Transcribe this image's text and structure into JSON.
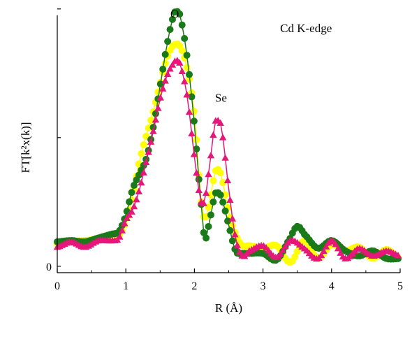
{
  "chart_data": {
    "type": "scatter",
    "xlabel": "R (Å)",
    "ylabel": "FT[k²x(k)]",
    "xlim": [
      0,
      5
    ],
    "ylim": [
      -0.05,
      1.95
    ],
    "x_ticks": [
      0,
      1,
      2,
      3,
      4,
      5
    ],
    "x_tick_labels": [
      "0",
      "1",
      "2",
      "3",
      "4",
      "5"
    ],
    "y_tick_labels": [
      "0",
      "",
      ""
    ],
    "y_ticks": [
      0,
      1.0,
      2.0
    ],
    "grid": false,
    "annotations": [
      {
        "text": "O",
        "x": 1.65,
        "y": 1.93
      },
      {
        "text": "Se",
        "x": 2.3,
        "y": 1.28
      },
      {
        "text": "Cd K-edge",
        "x": 3.25,
        "y": 1.82
      }
    ],
    "series": [
      {
        "marker": "circle",
        "color": "#ffff00",
        "x": [
          0.0,
          0.2,
          0.4,
          0.6,
          0.8,
          0.9,
          1.0,
          1.1,
          1.2,
          1.3,
          1.4,
          1.5,
          1.6,
          1.7,
          1.8,
          1.9,
          2.0,
          2.1,
          2.15,
          2.2,
          2.3,
          2.35,
          2.4,
          2.5,
          2.6,
          2.7,
          2.8,
          3.0,
          3.2,
          3.4,
          3.6,
          3.8,
          4.0,
          4.2,
          4.4,
          4.6,
          4.8,
          5.0
        ],
        "y": [
          0.17,
          0.19,
          0.2,
          0.21,
          0.22,
          0.24,
          0.35,
          0.55,
          0.82,
          1.02,
          1.2,
          1.42,
          1.62,
          1.72,
          1.7,
          1.52,
          1.18,
          0.5,
          0.38,
          0.45,
          0.72,
          0.75,
          0.68,
          0.42,
          0.25,
          0.16,
          0.16,
          0.14,
          0.16,
          0.03,
          0.2,
          0.06,
          0.17,
          0.12,
          0.15,
          0.06,
          0.13,
          0.06
        ]
      },
      {
        "marker": "circle",
        "color": "#1a7a1a",
        "x": [
          0.0,
          0.2,
          0.4,
          0.6,
          0.8,
          0.9,
          1.0,
          1.1,
          1.2,
          1.3,
          1.4,
          1.5,
          1.6,
          1.7,
          1.75,
          1.8,
          1.9,
          2.0,
          2.1,
          2.15,
          2.2,
          2.3,
          2.35,
          2.4,
          2.5,
          2.6,
          2.7,
          2.8,
          3.0,
          3.2,
          3.4,
          3.5,
          3.6,
          3.8,
          4.0,
          4.2,
          4.4,
          4.6,
          4.8,
          5.0
        ],
        "y": [
          0.19,
          0.2,
          0.19,
          0.22,
          0.25,
          0.27,
          0.4,
          0.6,
          0.72,
          0.84,
          1.08,
          1.4,
          1.72,
          1.95,
          1.98,
          1.92,
          1.6,
          1.1,
          0.48,
          0.22,
          0.3,
          0.55,
          0.57,
          0.52,
          0.32,
          0.12,
          0.1,
          0.1,
          0.1,
          0.05,
          0.22,
          0.31,
          0.25,
          0.14,
          0.2,
          0.12,
          0.08,
          0.12,
          0.06,
          0.06
        ]
      },
      {
        "marker": "triangle",
        "color": "#e6177a",
        "x": [
          0.0,
          0.2,
          0.4,
          0.6,
          0.8,
          0.9,
          1.0,
          1.1,
          1.2,
          1.3,
          1.4,
          1.5,
          1.6,
          1.7,
          1.75,
          1.8,
          1.9,
          2.0,
          2.1,
          2.15,
          2.2,
          2.3,
          2.35,
          2.4,
          2.5,
          2.6,
          2.7,
          2.8,
          3.0,
          3.2,
          3.4,
          3.6,
          3.8,
          4.0,
          4.2,
          4.4,
          4.6,
          4.8,
          5.0
        ],
        "y": [
          0.15,
          0.19,
          0.15,
          0.2,
          0.2,
          0.22,
          0.36,
          0.44,
          0.6,
          0.82,
          1.05,
          1.3,
          1.48,
          1.58,
          1.6,
          1.55,
          1.3,
          0.85,
          0.5,
          0.52,
          0.7,
          1.1,
          1.13,
          1.05,
          0.6,
          0.22,
          0.08,
          0.12,
          0.16,
          0.07,
          0.2,
          0.14,
          0.06,
          0.2,
          0.06,
          0.14,
          0.08,
          0.12,
          0.08
        ]
      }
    ]
  }
}
